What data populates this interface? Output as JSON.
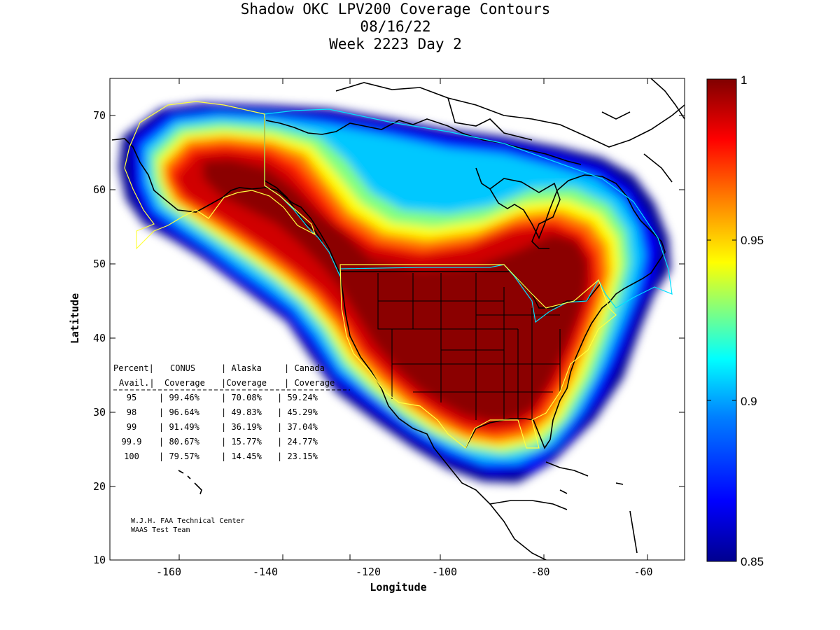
{
  "title": {
    "line1": "Shadow OKC LPV200 Coverage Contours",
    "line2": "08/16/22",
    "line3": "Week 2223 Day 2"
  },
  "axes": {
    "xlabel": "Longitude",
    "ylabel": "Latitude",
    "xlim": [
      -175,
      -50
    ],
    "ylim": [
      10,
      75
    ],
    "xticks": [
      "-160",
      "-140",
      "-120",
      "-100",
      "-80",
      "-60"
    ],
    "yticks": [
      "10",
      "20",
      "30",
      "40",
      "50",
      "60",
      "70"
    ]
  },
  "colorbar": {
    "min": 0.85,
    "max": 1,
    "ticks": [
      "0.85",
      "0.9",
      "0.95",
      "1"
    ],
    "colormap": [
      "#00008f",
      "#0000ff",
      "#0080ff",
      "#00ffff",
      "#80ff80",
      "#ffff00",
      "#ff8000",
      "#ff0000",
      "#800000"
    ]
  },
  "stats_table": {
    "header1": [
      "Percent|",
      "CONUS",
      "| Alaska",
      "| Canada"
    ],
    "header2": [
      "Avail.|",
      "Coverage",
      "|Coverage",
      "| Coverage"
    ],
    "rows": [
      [
        "95",
        "| 99.46%",
        "| 70.08%",
        "| 59.24%"
      ],
      [
        "98",
        "| 96.64%",
        "| 49.83%",
        "| 45.29%"
      ],
      [
        "99",
        "| 91.49%",
        "| 36.19%",
        "| 37.04%"
      ],
      [
        "99.9",
        "| 80.67%",
        "| 15.77%",
        "| 24.77%"
      ],
      [
        "100",
        "| 79.57%",
        "| 14.45%",
        "| 23.15%"
      ]
    ]
  },
  "credit": {
    "line1": "W.J.H. FAA Technical Center",
    "line2": "WAAS Test Team"
  }
}
